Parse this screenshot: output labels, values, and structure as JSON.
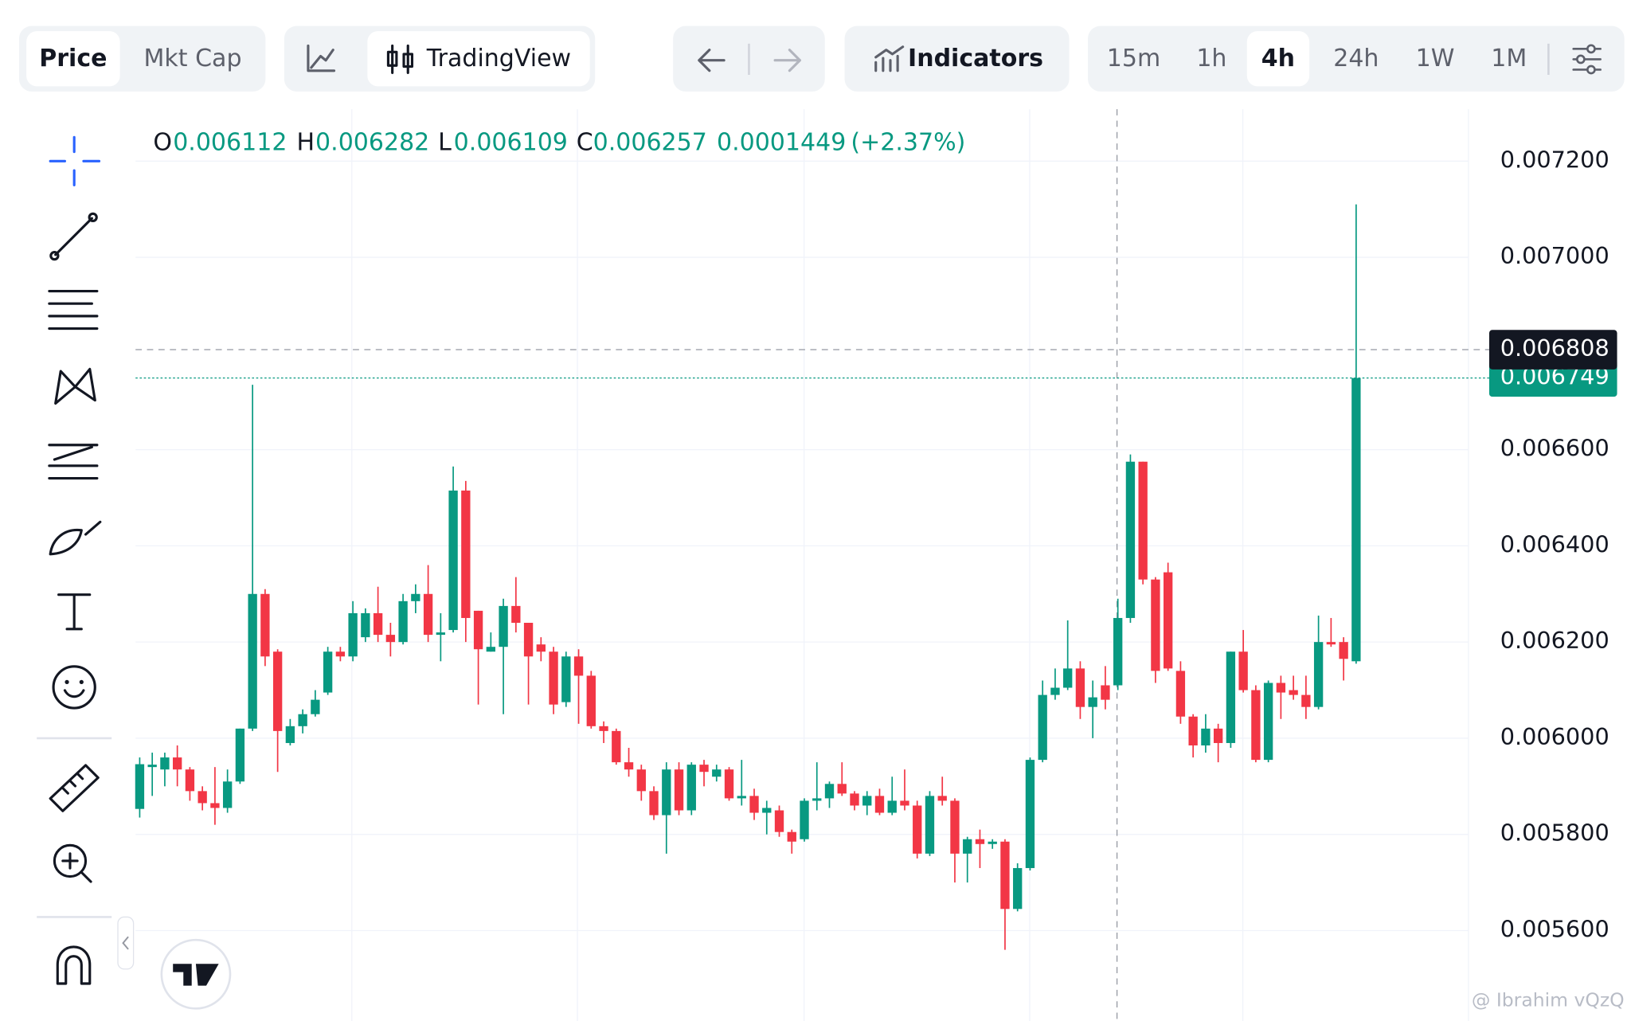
{
  "toolbar": {
    "price_tabs": [
      "Price",
      "Mkt Cap"
    ],
    "chart_style": "TradingView",
    "indicators": "Indicators",
    "intervals": [
      "15m",
      "1h",
      "4h",
      "24h",
      "1W",
      "1M"
    ],
    "active_interval": "4h"
  },
  "chart_data": {
    "type": "candlestick",
    "legend": {
      "o_label": "O",
      "o": 0.006112,
      "h_label": "H",
      "h": 0.006282,
      "l_label": "L",
      "l": 0.006109,
      "c_label": "C",
      "c": 0.006257,
      "change": 0.0001449,
      "change_pct": "(+2.37%)"
    },
    "up_color": "#089981",
    "down_color": "#f23645",
    "ylim": [
      0.005412,
      0.007308
    ],
    "yticks": [
      {
        "value": 0.0072,
        "label": "0.007200"
      },
      {
        "value": 0.007,
        "label": "0.007000"
      },
      {
        "value": 0.0066,
        "label": "0.006600"
      },
      {
        "value": 0.0064,
        "label": "0.006400"
      },
      {
        "value": 0.0062,
        "label": "0.006200"
      },
      {
        "value": 0.006,
        "label": "0.006000"
      },
      {
        "value": 0.0058,
        "label": "0.005800"
      },
      {
        "value": 0.0056,
        "label": "0.005600"
      }
    ],
    "grid": true,
    "crosshair_price": 0.006808,
    "last_price": 0.006749,
    "open": [
      0.005853,
      0.00594,
      0.005935,
      0.00596,
      0.005935,
      0.00589,
      0.005865,
      0.005855,
      0.00591,
      0.00602,
      0.0063,
      0.00618,
      0.00599,
      0.006025,
      0.00605,
      0.006095,
      0.00618,
      0.00617,
      0.00621,
      0.00626,
      0.006215,
      0.0062,
      0.006285,
      0.0063,
      0.006215,
      0.006225,
      0.006515,
      0.006265,
      0.00618,
      0.00619,
      0.006275,
      0.00624,
      0.006195,
      0.00618,
      0.006075,
      0.00617,
      0.00613,
      0.006025,
      0.006015,
      0.00595,
      0.005935,
      0.00589,
      0.00584,
      0.005935,
      0.00585,
      0.005945,
      0.00592,
      0.005935,
      0.005875,
      0.00588,
      0.005845,
      0.00585,
      0.005805,
      0.00579,
      0.00587,
      0.005875,
      0.005905,
      0.005885,
      0.00586,
      0.00588,
      0.005845,
      0.00587,
      0.00586,
      0.00576,
      0.00588,
      0.00587,
      0.00576,
      0.00579,
      0.00578,
      0.005785,
      0.005645,
      0.00573,
      0.005955,
      0.00609,
      0.006105,
      0.006145,
      0.006065,
      0.00611,
      0.00611,
      0.00625,
      0.006575,
      0.00633,
      0.006345,
      0.00614,
      0.006045,
      0.005985,
      0.00602,
      0.00599,
      0.00618,
      0.0061,
      0.005955,
      0.006115,
      0.0061,
      0.00609,
      0.006065,
      0.0062,
      0.0062,
      0.00616
    ],
    "high": [
      0.00596,
      0.00597,
      0.00597,
      0.005985,
      0.00594,
      0.0059,
      0.00594,
      0.005935,
      0.00602,
      0.006735,
      0.00631,
      0.006185,
      0.00604,
      0.00606,
      0.0061,
      0.00619,
      0.00619,
      0.006285,
      0.00627,
      0.006315,
      0.00624,
      0.0063,
      0.00632,
      0.00636,
      0.00626,
      0.006565,
      0.006535,
      0.006265,
      0.00622,
      0.00629,
      0.006335,
      0.00624,
      0.00621,
      0.00619,
      0.00618,
      0.006185,
      0.00614,
      0.006035,
      0.00602,
      0.00598,
      0.005945,
      0.0059,
      0.00595,
      0.00595,
      0.00595,
      0.005955,
      0.005945,
      0.00594,
      0.005955,
      0.005895,
      0.00587,
      0.00586,
      0.00581,
      0.005875,
      0.00595,
      0.00591,
      0.00595,
      0.00589,
      0.00589,
      0.005895,
      0.00592,
      0.005935,
      0.00587,
      0.00589,
      0.00592,
      0.005875,
      0.005795,
      0.00581,
      0.00579,
      0.00579,
      0.00574,
      0.00596,
      0.00612,
      0.006145,
      0.006245,
      0.00616,
      0.00612,
      0.00615,
      0.00629,
      0.00659,
      0.006575,
      0.006335,
      0.006365,
      0.00616,
      0.00605,
      0.00605,
      0.00603,
      0.00618,
      0.006225,
      0.00611,
      0.00612,
      0.00613,
      0.00613,
      0.00613,
      0.006255,
      0.00625,
      0.00621,
      0.00711
    ],
    "low": [
      0.005835,
      0.00588,
      0.0059,
      0.0059,
      0.00587,
      0.00585,
      0.00582,
      0.005845,
      0.005905,
      0.006015,
      0.00615,
      0.00593,
      0.005985,
      0.00601,
      0.006045,
      0.00609,
      0.00616,
      0.00616,
      0.0062,
      0.0062,
      0.00617,
      0.006195,
      0.00626,
      0.0062,
      0.00616,
      0.00622,
      0.0062,
      0.00607,
      0.00618,
      0.00605,
      0.00622,
      0.00607,
      0.00616,
      0.00605,
      0.006065,
      0.00603,
      0.00602,
      0.00599,
      0.005945,
      0.00592,
      0.00587,
      0.00583,
      0.00576,
      0.00584,
      0.00584,
      0.0059,
      0.00591,
      0.00587,
      0.00586,
      0.00583,
      0.0058,
      0.005795,
      0.00576,
      0.005785,
      0.00585,
      0.005855,
      0.00588,
      0.00585,
      0.00584,
      0.00584,
      0.00584,
      0.00585,
      0.00575,
      0.005755,
      0.00586,
      0.0057,
      0.0057,
      0.00573,
      0.00577,
      0.00556,
      0.00564,
      0.005725,
      0.00595,
      0.00608,
      0.0061,
      0.00604,
      0.006,
      0.00606,
      0.0061,
      0.00624,
      0.00632,
      0.006115,
      0.00614,
      0.00603,
      0.00596,
      0.00597,
      0.00595,
      0.00598,
      0.006095,
      0.00595,
      0.00595,
      0.00604,
      0.00608,
      0.00604,
      0.00606,
      0.00619,
      0.00612,
      0.006155
    ],
    "close": [
      0.005946,
      0.005945,
      0.00596,
      0.005935,
      0.00589,
      0.005865,
      0.005855,
      0.00591,
      0.00602,
      0.0063,
      0.00617,
      0.006015,
      0.006025,
      0.00605,
      0.00608,
      0.00618,
      0.00617,
      0.00626,
      0.00626,
      0.006215,
      0.0062,
      0.006285,
      0.0063,
      0.006215,
      0.00622,
      0.006515,
      0.00625,
      0.006185,
      0.00619,
      0.006275,
      0.00624,
      0.00617,
      0.00618,
      0.00607,
      0.00617,
      0.00613,
      0.006025,
      0.006015,
      0.00595,
      0.005935,
      0.00589,
      0.00584,
      0.005935,
      0.00585,
      0.005945,
      0.00593,
      0.005935,
      0.005875,
      0.00588,
      0.005845,
      0.005855,
      0.005805,
      0.005785,
      0.00587,
      0.005875,
      0.005905,
      0.005885,
      0.00586,
      0.00588,
      0.005845,
      0.00587,
      0.00586,
      0.00576,
      0.00588,
      0.00587,
      0.00576,
      0.00579,
      0.00578,
      0.005785,
      0.005645,
      0.00573,
      0.005955,
      0.00609,
      0.006105,
      0.006145,
      0.006065,
      0.006085,
      0.00608,
      0.00625,
      0.006575,
      0.00633,
      0.00614,
      0.006145,
      0.006045,
      0.005985,
      0.00602,
      0.00599,
      0.00618,
      0.0061,
      0.005955,
      0.006115,
      0.006095,
      0.00609,
      0.006065,
      0.0062,
      0.006195,
      0.006165,
      0.006749
    ]
  },
  "watermark": "@ Ibrahim vQzQ"
}
